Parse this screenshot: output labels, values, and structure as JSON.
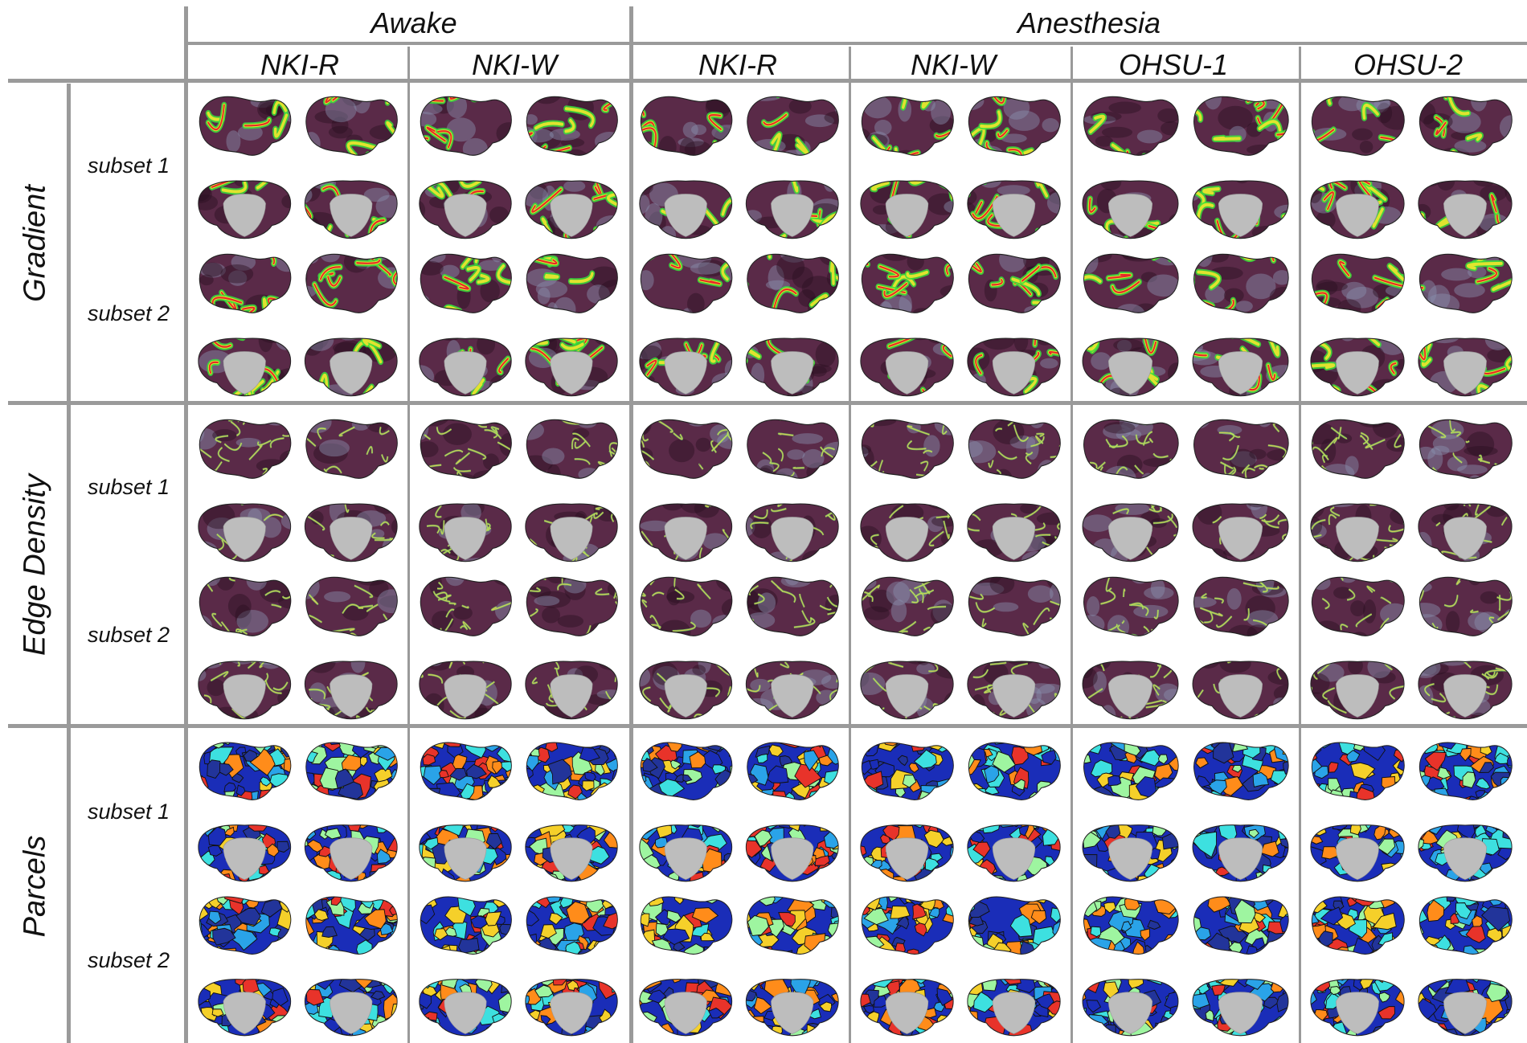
{
  "figure": {
    "groups": [
      {
        "label": "Awake",
        "columns": [
          "NKI-R",
          "NKI-W"
        ]
      },
      {
        "label": "Anesthesia",
        "columns": [
          "NKI-R",
          "NKI-W",
          "OHSU-1",
          "OHSU-2"
        ]
      }
    ],
    "row_groups": [
      {
        "label": "Gradient",
        "subsets": [
          "subset 1",
          "subset 2"
        ],
        "style": "gradient"
      },
      {
        "label": "Edge Density",
        "subsets": [
          "subset 1",
          "subset 2"
        ],
        "style": "edge"
      },
      {
        "label": "Parcels",
        "subsets": [
          "subset 1",
          "subset 2"
        ],
        "style": "parcel"
      }
    ],
    "colors": {
      "grid_line": "#9a9a9a",
      "base_maroon": "#5a2a48",
      "medial_wall": "#bdbdbd",
      "gradient_colors": [
        "#3a1530",
        "#7a8fb0",
        "#39e03b",
        "#f2e62e",
        "#e8262a"
      ],
      "parcel_colors": [
        "#1a2db8",
        "#2aa3e8",
        "#9ef5a0",
        "#f5d02a",
        "#e8332a",
        "#ff8c1a",
        "#3de0e0",
        "#22349a"
      ]
    }
  }
}
